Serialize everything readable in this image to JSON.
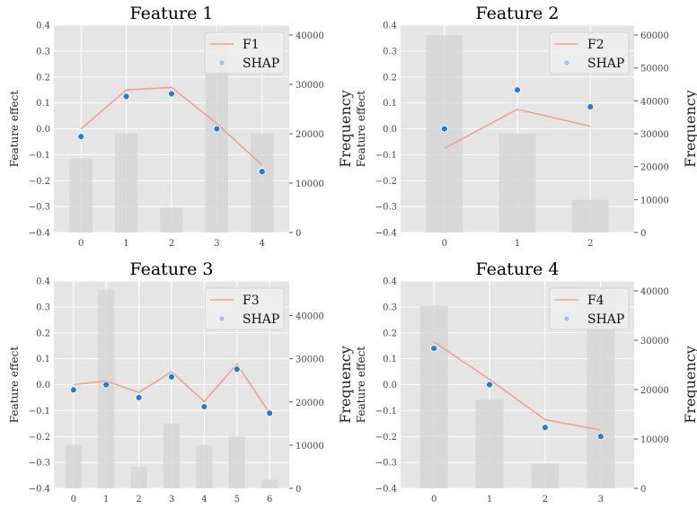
{
  "chart_data": [
    {
      "type": "bar+line+scatter",
      "title": "Feature 1",
      "ylabel": "Feature effect",
      "y2label": "Frequency",
      "categories": [
        "0",
        "1",
        "2",
        "3",
        "4"
      ],
      "ylim": [
        -0.4,
        0.4
      ],
      "yticks": [
        "0.4",
        "0.3",
        "0.2",
        "0.1",
        "0.0",
        "−0.1",
        "−0.2",
        "−0.3",
        "−0.4"
      ],
      "y2lim": [
        0,
        42000
      ],
      "y2ticks": [
        0,
        10000,
        20000,
        30000,
        40000
      ],
      "frequency": [
        15000,
        20000,
        5000,
        40000,
        20000
      ],
      "line": {
        "name": "F1",
        "values": [
          0.0,
          0.15,
          0.16,
          0.02,
          -0.14
        ]
      },
      "shap": {
        "name": "SHAP",
        "values": [
          -0.03,
          0.125,
          0.135,
          0.0,
          -0.165
        ]
      },
      "grid": true,
      "legend": "top-right"
    },
    {
      "type": "bar+line+scatter",
      "title": "Feature 2",
      "ylabel": "Feature effect",
      "y2label": "Frequency",
      "categories": [
        "0",
        "1",
        "2"
      ],
      "ylim": [
        -0.4,
        0.4
      ],
      "yticks": [
        "0.4",
        "0.3",
        "0.2",
        "0.1",
        "0.0",
        "−0.1",
        "−0.2",
        "−0.3",
        "−0.4"
      ],
      "y2lim": [
        0,
        63000
      ],
      "y2ticks": [
        0,
        10000,
        20000,
        30000,
        40000,
        50000,
        60000
      ],
      "frequency": [
        60000,
        30000,
        10000
      ],
      "line": {
        "name": "F2",
        "values": [
          -0.075,
          0.075,
          0.01
        ]
      },
      "shap": {
        "name": "SHAP",
        "values": [
          0.0,
          0.15,
          0.085
        ]
      },
      "grid": true,
      "legend": "top-right"
    },
    {
      "type": "bar+line+scatter",
      "title": "Feature 3",
      "ylabel": "Feature effect",
      "y2label": "Frequency",
      "categories": [
        "0",
        "1",
        "2",
        "3",
        "4",
        "5",
        "6"
      ],
      "ylim": [
        -0.4,
        0.4
      ],
      "yticks": [
        "0.4",
        "0.3",
        "0.2",
        "0.1",
        "0.0",
        "−0.1",
        "−0.2",
        "−0.3",
        "−0.4"
      ],
      "y2lim": [
        0,
        48000
      ],
      "y2ticks": [
        0,
        10000,
        20000,
        30000,
        40000
      ],
      "frequency": [
        10000,
        46000,
        5000,
        15000,
        10000,
        12000,
        2000
      ],
      "line": {
        "name": "F3",
        "values": [
          0.0,
          0.015,
          -0.03,
          0.05,
          -0.065,
          0.08,
          -0.11
        ]
      },
      "shap": {
        "name": "SHAP",
        "values": [
          -0.02,
          0.0,
          -0.05,
          0.03,
          -0.085,
          0.06,
          -0.11
        ]
      },
      "grid": true,
      "legend": "top-right"
    },
    {
      "type": "bar+line+scatter",
      "title": "Feature 4",
      "ylabel": "Feature effect",
      "y2label": "Frequency",
      "categories": [
        "0",
        "1",
        "2",
        "3"
      ],
      "ylim": [
        -0.4,
        0.4
      ],
      "yticks": [
        "0.4",
        "0.3",
        "0.2",
        "0.1",
        "0.0",
        "−0.1",
        "−0.2",
        "−0.3",
        "−0.4"
      ],
      "y2lim": [
        0,
        42000
      ],
      "y2ticks": [
        0,
        10000,
        20000,
        30000,
        40000
      ],
      "frequency": [
        37000,
        18000,
        5000,
        40000
      ],
      "line": {
        "name": "F4",
        "values": [
          0.165,
          0.02,
          -0.135,
          -0.175
        ]
      },
      "shap": {
        "name": "SHAP",
        "values": [
          0.14,
          0.0,
          -0.165,
          -0.2
        ]
      },
      "grid": true,
      "legend": "top-right"
    }
  ],
  "colors": {
    "plot_bg": "#e5e5e5",
    "grid": "#ffffff",
    "bars": "#d6d6d6",
    "line": "#e8a393",
    "shap_fill": "#1f7fd6",
    "shap_legend": "#9cc4ea"
  }
}
